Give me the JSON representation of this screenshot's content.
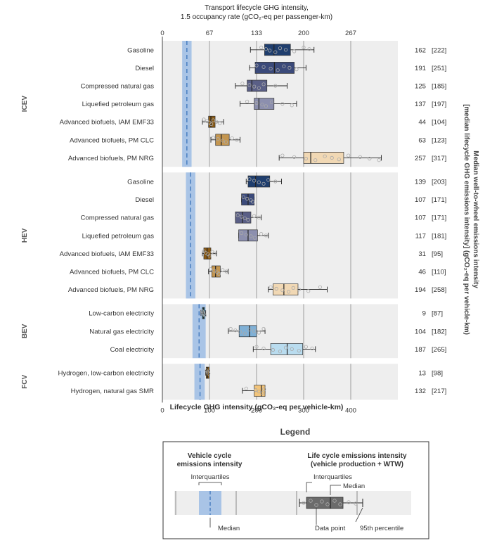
{
  "chart_data": {
    "type": "boxplot",
    "top_axis_title_line1": "Transport lifecycle GHG intensity,",
    "top_axis_title_line2": "1.5 occupancy rate (gCO₂-eq per passenger-km)",
    "top_ticks": [
      "0",
      "67",
      "133",
      "200",
      "267"
    ],
    "xlabel": "Lifecycle GHG intensity (gCO₂-eq per vehicle-km)",
    "x_ticks": [
      "0",
      "100",
      "200",
      "300",
      "400"
    ],
    "xlim": [
      0,
      500
    ],
    "right_axis_title_line1": "Median well-to-wheel emissions intensity",
    "right_axis_title_line2": "[median lifecycle GHG emissions intensity] (gCO₂-eq per vehicle-km)",
    "groups": [
      {
        "name": "ICEV",
        "vehicle_cycle": {
          "q1": 42,
          "q3": 62,
          "median": 52
        },
        "rows": [
          {
            "label": "Gasoline",
            "min": 187,
            "q1": 217,
            "median": 237,
            "q3": 272,
            "p95": 322,
            "points": [
              210,
              220,
              228,
              240,
              250,
              262,
              280,
              300,
              312
            ],
            "fill": "#1f3e6e",
            "wtw": "162",
            "lifecycle": "[222]"
          },
          {
            "label": "Diesel",
            "min": 185,
            "q1": 197,
            "median": 238,
            "q3": 280,
            "p95": 305,
            "points": [
              200,
              215,
              230,
              245,
              258,
              270,
              285
            ],
            "fill": "#3b4a7a",
            "wtw": "191",
            "lifecycle": "[251]"
          },
          {
            "label": "Compressed natural gas",
            "min": 155,
            "q1": 180,
            "median": 190,
            "q3": 222,
            "p95": 265,
            "points": [
              170,
              185,
              195,
              205,
              215,
              240
            ],
            "fill": "#5a5f86",
            "wtw": "125",
            "lifecycle": "[185]"
          },
          {
            "label": "Liquefied petroleum gas",
            "min": 165,
            "q1": 195,
            "median": 205,
            "q3": 237,
            "p95": 285,
            "points": [
              180,
              200,
              212,
              220,
              232,
              255,
              275
            ],
            "fill": "#8c8fae",
            "wtw": "137",
            "lifecycle": "[197]"
          },
          {
            "label": "Advanced biofuels, IAM EMF33",
            "min": 85,
            "q1": 98,
            "median": 103,
            "q3": 112,
            "p95": 130,
            "points": [
              88,
              95,
              100,
              104,
              108,
              115,
              122
            ],
            "fill": "#8a5a14",
            "wtw": "44",
            "lifecycle": "[104]"
          },
          {
            "label": "Advanced biofuels, PM CLC",
            "min": 103,
            "q1": 113,
            "median": 125,
            "q3": 142,
            "p95": 165,
            "points": [
              108,
              118,
              128,
              135,
              148,
              158
            ],
            "fill": "#c49650",
            "wtw": "63",
            "lifecycle": "[123]"
          },
          {
            "label": "Advanced biofuels, PM NRG",
            "min": 248,
            "q1": 300,
            "median": 315,
            "q3": 385,
            "p95": 465,
            "points": [
              255,
              280,
              305,
              325,
              345,
              360,
              375,
              395,
              420,
              440,
              460
            ],
            "fill": "#f1d8b4",
            "wtw": "257",
            "lifecycle": "[317]"
          }
        ]
      },
      {
        "name": "HEV",
        "vehicle_cycle": {
          "q1": 50,
          "q3": 70,
          "median": 60
        },
        "rows": [
          {
            "label": "Gasoline",
            "min": 178,
            "q1": 182,
            "median": 198,
            "q3": 228,
            "p95": 253,
            "points": [
              185,
              195,
              205,
              215,
              225,
              240
            ],
            "fill": "#1f3e6e",
            "wtw": "139",
            "lifecycle": "[203]"
          },
          {
            "label": "Diesel",
            "min": 168,
            "q1": 168,
            "median": 182,
            "q3": 195,
            "p95": 195,
            "points": [
              172,
              180,
              188,
              192
            ],
            "fill": "#3b4a7a",
            "wtw": "107",
            "lifecycle": "[171]"
          },
          {
            "label": "Compressed natural gas",
            "min": 155,
            "q1": 155,
            "median": 170,
            "q3": 188,
            "p95": 210,
            "points": [
              160,
              168,
              175,
              182,
              195,
              205
            ],
            "fill": "#5a5f86",
            "wtw": "107",
            "lifecycle": "[171]"
          },
          {
            "label": "Liquefied petroleum gas",
            "min": 162,
            "q1": 162,
            "median": 182,
            "q3": 202,
            "p95": 225,
            "points": [
              168,
              178,
              188,
              196,
              210,
              220
            ],
            "fill": "#8c8fae",
            "wtw": "117",
            "lifecycle": "[181]"
          },
          {
            "label": "Advanced biofuels, IAM EMF33",
            "min": 85,
            "q1": 88,
            "median": 95,
            "q3": 103,
            "p95": 115,
            "points": [
              88,
              92,
              97,
              100,
              106,
              110
            ],
            "fill": "#8a5a14",
            "wtw": "31",
            "lifecycle": "[95]"
          },
          {
            "label": "Advanced biofuels, PM CLC",
            "min": 98,
            "q1": 105,
            "median": 113,
            "q3": 123,
            "p95": 140,
            "points": [
              102,
              110,
              116,
              120,
              128,
              136
            ],
            "fill": "#c49650",
            "wtw": "46",
            "lifecycle": "[110]"
          },
          {
            "label": "Advanced biofuels, PM NRG",
            "min": 225,
            "q1": 235,
            "median": 258,
            "q3": 288,
            "p95": 350,
            "points": [
              230,
              242,
              255,
              268,
              278,
              290,
              310,
              335
            ],
            "fill": "#f1d8b4",
            "wtw": "194",
            "lifecycle": "[258]"
          }
        ]
      },
      {
        "name": "BEV",
        "vehicle_cycle": {
          "q1": 64,
          "q3": 92,
          "median": 78
        },
        "rows": [
          {
            "label": "Low-carbon electricity",
            "min": 82,
            "q1": 85,
            "median": 87,
            "q3": 89,
            "p95": 92,
            "points": [
              84,
              86,
              88,
              90
            ],
            "fill": "#12707a",
            "wtw": "9",
            "lifecycle": "[87]"
          },
          {
            "label": "Natural gas electricity",
            "min": 140,
            "q1": 163,
            "median": 185,
            "q3": 200,
            "p95": 218,
            "points": [
              145,
              155,
              165,
              175,
              185,
              195,
              205,
              215
            ],
            "fill": "#7fb0d6",
            "wtw": "104",
            "lifecycle": "[182]"
          },
          {
            "label": "Coal electricity",
            "min": 193,
            "q1": 230,
            "median": 265,
            "q3": 298,
            "p95": 325,
            "points": [
              200,
              215,
              235,
              250,
              262,
              275,
              290,
              305,
              318
            ],
            "fill": "#b9dcef",
            "wtw": "187",
            "lifecycle": "[265]"
          }
        ]
      },
      {
        "name": "FCV",
        "vehicle_cycle": {
          "q1": 68,
          "q3": 90,
          "median": 80
        },
        "rows": [
          {
            "label": "Hydrogen, low-carbon electricity",
            "min": 92,
            "q1": 93,
            "median": 96,
            "q3": 99,
            "p95": 100,
            "points": [
              94,
              96,
              98
            ],
            "fill": "#8a5a14",
            "wtw": "13",
            "lifecycle": "[98]"
          },
          {
            "label": "Hydrogen, natural gas SMR",
            "min": 170,
            "q1": 195,
            "median": 210,
            "q3": 218,
            "p95": 218,
            "points": [
              178,
              198,
              205,
              212,
              216
            ],
            "fill": "#f2c47a",
            "wtw": "132",
            "lifecycle": "[217]"
          }
        ]
      }
    ]
  },
  "legend": {
    "heading": "Legend",
    "vehicle_cycle_title_line1": "Vehicle cycle",
    "vehicle_cycle_title_line2": "emissions intensity",
    "interquartiles_left": "Interquartiles",
    "median_left": "Median",
    "lifecycle_title_line1": "Life cycle emissions intensity",
    "lifecycle_title_line2": "(vehicle production + WTW)",
    "interquartiles_right": "Interquartiles",
    "median_right": "Median",
    "data_point": "Data point",
    "p95": "95th percentile"
  },
  "colors": {
    "panel_bg": "#eeeeee",
    "vehicle_cycle_band": "#a9c4e6",
    "vehicle_cycle_median": "#4a7fc0",
    "gridline": "#888888"
  }
}
